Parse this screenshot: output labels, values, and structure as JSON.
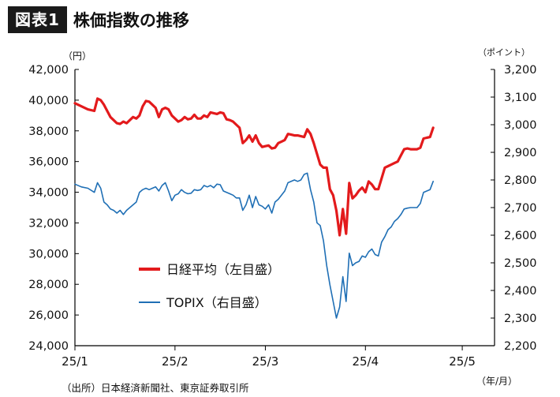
{
  "figure": {
    "badge": "図表1",
    "title": "株価指数の推移",
    "unit_left": "（円）",
    "unit_right": "（ポイント）",
    "unit_x": "（年/月）",
    "source": "（出所）日本経済新聞社、東京証券取引所"
  },
  "colors": {
    "nikkei": "#e31a1c",
    "topix": "#1f6fb5",
    "axis": "#000000"
  },
  "chart_data": {
    "type": "line",
    "x_tick_labels": [
      "25/1",
      "25/2",
      "25/3",
      "25/4",
      "25/5"
    ],
    "y_left": {
      "label": "円",
      "range": [
        24000,
        42000
      ],
      "ticks": [
        24000,
        26000,
        28000,
        30000,
        32000,
        34000,
        36000,
        38000,
        40000,
        42000
      ],
      "tick_labels": [
        "24,000",
        "26,000",
        "28,000",
        "30,000",
        "32,000",
        "34,000",
        "36,000",
        "38,000",
        "40,000",
        "42,000"
      ]
    },
    "y_right": {
      "label": "ポイント",
      "range": [
        2200,
        3200
      ],
      "ticks": [
        2200,
        2300,
        2400,
        2500,
        2600,
        2700,
        2800,
        2900,
        3000,
        3100,
        3200
      ],
      "tick_labels": [
        "2,200",
        "2,300",
        "2,400",
        "2,500",
        "2,600",
        "2,700",
        "2,800",
        "2,900",
        "3,000",
        "3,100",
        "3,200"
      ]
    },
    "x_range_days": [
      0,
      130
    ],
    "grid": false,
    "legend_position": "center-left",
    "series": [
      {
        "name": "日経平均（左目盛）",
        "axis": "left",
        "points": [
          [
            0,
            39800
          ],
          [
            2,
            39600
          ],
          [
            4,
            39400
          ],
          [
            6,
            39300
          ],
          [
            7,
            40100
          ],
          [
            8,
            40000
          ],
          [
            9,
            39700
          ],
          [
            10,
            39300
          ],
          [
            11,
            38900
          ],
          [
            12,
            38700
          ],
          [
            13,
            38500
          ],
          [
            14,
            38450
          ],
          [
            15,
            38600
          ],
          [
            16,
            38500
          ],
          [
            17,
            38700
          ],
          [
            18,
            38900
          ],
          [
            19,
            38800
          ],
          [
            20,
            39000
          ],
          [
            21,
            39600
          ],
          [
            22,
            39950
          ],
          [
            23,
            39900
          ],
          [
            24,
            39700
          ],
          [
            25,
            39500
          ],
          [
            26,
            38900
          ],
          [
            27,
            39400
          ],
          [
            28,
            39500
          ],
          [
            29,
            39400
          ],
          [
            30,
            39000
          ],
          [
            31,
            38800
          ],
          [
            32,
            38600
          ],
          [
            33,
            38700
          ],
          [
            34,
            38900
          ],
          [
            35,
            38750
          ],
          [
            36,
            38800
          ],
          [
            37,
            39050
          ],
          [
            38,
            38800
          ],
          [
            39,
            38800
          ],
          [
            40,
            39000
          ],
          [
            41,
            38900
          ],
          [
            42,
            39200
          ],
          [
            43,
            39150
          ],
          [
            44,
            39100
          ],
          [
            45,
            39200
          ],
          [
            46,
            39150
          ],
          [
            47,
            38750
          ],
          [
            48,
            38700
          ],
          [
            49,
            38600
          ],
          [
            50,
            38400
          ],
          [
            51,
            38200
          ],
          [
            52,
            37200
          ],
          [
            53,
            37400
          ],
          [
            54,
            37700
          ],
          [
            55,
            37300
          ],
          [
            56,
            37700
          ],
          [
            57,
            37200
          ],
          [
            58,
            36950
          ],
          [
            59,
            37000
          ],
          [
            60,
            37050
          ],
          [
            61,
            36850
          ],
          [
            62,
            36900
          ],
          [
            63,
            37200
          ],
          [
            64,
            37300
          ],
          [
            65,
            37400
          ],
          [
            66,
            37800
          ],
          [
            67,
            37750
          ],
          [
            68,
            37700
          ],
          [
            69,
            37700
          ],
          [
            70,
            37650
          ],
          [
            71,
            37600
          ],
          [
            72,
            38100
          ],
          [
            73,
            37800
          ],
          [
            74,
            37200
          ],
          [
            75,
            36500
          ],
          [
            76,
            35800
          ],
          [
            77,
            35600
          ],
          [
            78,
            35600
          ],
          [
            79,
            34200
          ],
          [
            80,
            33800
          ],
          [
            81,
            32800
          ],
          [
            82,
            31200
          ],
          [
            83,
            32900
          ],
          [
            84,
            31300
          ],
          [
            85,
            34600
          ],
          [
            86,
            33600
          ],
          [
            87,
            33800
          ],
          [
            88,
            34100
          ],
          [
            89,
            34300
          ],
          [
            90,
            34000
          ],
          [
            91,
            34700
          ],
          [
            92,
            34500
          ],
          [
            93,
            34200
          ],
          [
            94,
            34200
          ],
          [
            95,
            34900
          ],
          [
            96,
            35600
          ],
          [
            97,
            35700
          ],
          [
            98,
            35800
          ],
          [
            99,
            35900
          ],
          [
            100,
            36000
          ],
          [
            101,
            36400
          ],
          [
            102,
            36800
          ],
          [
            103,
            36850
          ],
          [
            104,
            36800
          ],
          [
            105,
            36800
          ],
          [
            106,
            36800
          ],
          [
            107,
            36900
          ],
          [
            108,
            37500
          ],
          [
            109,
            37550
          ],
          [
            110,
            37600
          ],
          [
            111,
            38200
          ]
        ]
      },
      {
        "name": "TOPIX（右目盛）",
        "axis": "right",
        "points": [
          [
            0,
            2785
          ],
          [
            2,
            2775
          ],
          [
            4,
            2770
          ],
          [
            6,
            2755
          ],
          [
            7,
            2790
          ],
          [
            8,
            2770
          ],
          [
            9,
            2720
          ],
          [
            10,
            2710
          ],
          [
            11,
            2695
          ],
          [
            12,
            2690
          ],
          [
            13,
            2680
          ],
          [
            14,
            2690
          ],
          [
            15,
            2675
          ],
          [
            16,
            2690
          ],
          [
            17,
            2700
          ],
          [
            18,
            2710
          ],
          [
            19,
            2720
          ],
          [
            20,
            2755
          ],
          [
            21,
            2765
          ],
          [
            22,
            2770
          ],
          [
            23,
            2765
          ],
          [
            24,
            2770
          ],
          [
            25,
            2775
          ],
          [
            26,
            2760
          ],
          [
            27,
            2780
          ],
          [
            28,
            2790
          ],
          [
            29,
            2760
          ],
          [
            30,
            2725
          ],
          [
            31,
            2745
          ],
          [
            32,
            2750
          ],
          [
            33,
            2765
          ],
          [
            34,
            2755
          ],
          [
            35,
            2750
          ],
          [
            36,
            2752
          ],
          [
            37,
            2765
          ],
          [
            38,
            2762
          ],
          [
            39,
            2765
          ],
          [
            40,
            2780
          ],
          [
            41,
            2775
          ],
          [
            42,
            2780
          ],
          [
            43,
            2772
          ],
          [
            44,
            2785
          ],
          [
            45,
            2783
          ],
          [
            46,
            2760
          ],
          [
            47,
            2755
          ],
          [
            48,
            2750
          ],
          [
            49,
            2745
          ],
          [
            50,
            2735
          ],
          [
            51,
            2735
          ],
          [
            52,
            2690
          ],
          [
            53,
            2710
          ],
          [
            54,
            2745
          ],
          [
            55,
            2700
          ],
          [
            56,
            2740
          ],
          [
            57,
            2710
          ],
          [
            58,
            2705
          ],
          [
            59,
            2695
          ],
          [
            60,
            2710
          ],
          [
            61,
            2680
          ],
          [
            62,
            2720
          ],
          [
            63,
            2730
          ],
          [
            64,
            2745
          ],
          [
            65,
            2760
          ],
          [
            66,
            2790
          ],
          [
            67,
            2795
          ],
          [
            68,
            2800
          ],
          [
            69,
            2795
          ],
          [
            70,
            2800
          ],
          [
            71,
            2820
          ],
          [
            72,
            2825
          ],
          [
            73,
            2765
          ],
          [
            74,
            2720
          ],
          [
            75,
            2645
          ],
          [
            76,
            2635
          ],
          [
            77,
            2580
          ],
          [
            78,
            2490
          ],
          [
            79,
            2420
          ],
          [
            80,
            2360
          ],
          [
            81,
            2300
          ],
          [
            82,
            2340
          ],
          [
            83,
            2450
          ],
          [
            84,
            2360
          ],
          [
            85,
            2535
          ],
          [
            86,
            2490
          ],
          [
            87,
            2500
          ],
          [
            88,
            2505
          ],
          [
            89,
            2525
          ],
          [
            90,
            2520
          ],
          [
            91,
            2540
          ],
          [
            92,
            2550
          ],
          [
            93,
            2530
          ],
          [
            94,
            2525
          ],
          [
            95,
            2575
          ],
          [
            96,
            2595
          ],
          [
            97,
            2620
          ],
          [
            98,
            2630
          ],
          [
            99,
            2650
          ],
          [
            100,
            2660
          ],
          [
            101,
            2675
          ],
          [
            102,
            2695
          ],
          [
            103,
            2698
          ],
          [
            104,
            2700
          ],
          [
            105,
            2700
          ],
          [
            106,
            2700
          ],
          [
            107,
            2715
          ],
          [
            108,
            2755
          ],
          [
            109,
            2760
          ],
          [
            110,
            2765
          ],
          [
            111,
            2795
          ]
        ]
      }
    ]
  }
}
